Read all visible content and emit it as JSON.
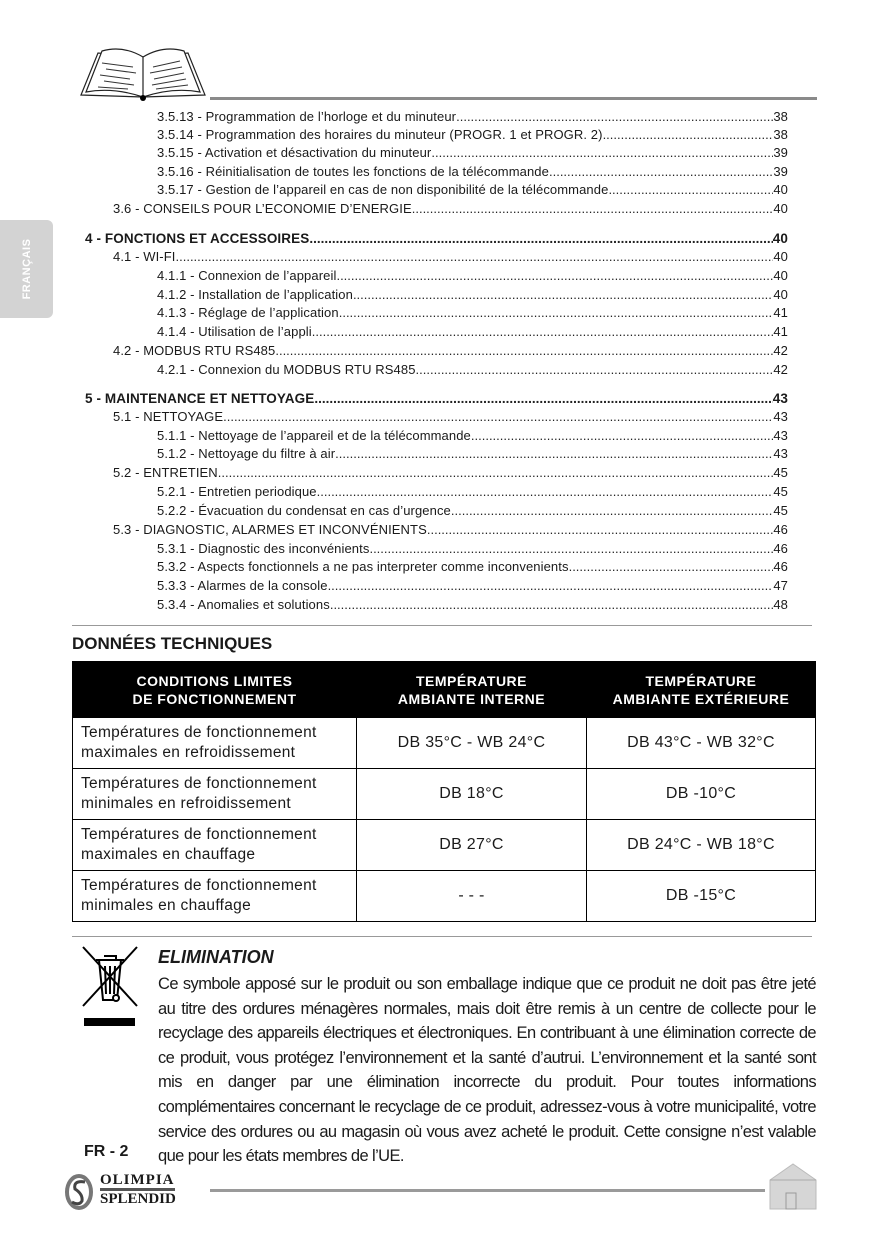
{
  "side_tab": "FRANÇAIS",
  "toc": [
    {
      "level": 3,
      "label": "3.5.13  - Programmation de l’horloge et du minuteur",
      "page": "38"
    },
    {
      "level": 3,
      "label": "3.5.14  - Programmation des horaires du minuteur (PROGR. 1 et PROGR. 2)",
      "page": "38"
    },
    {
      "level": 3,
      "label": "3.5.15  - Activation et désactivation du minuteur",
      "page": "39"
    },
    {
      "level": 3,
      "label": "3.5.16  - Réinitialisation de toutes les fonctions de la télécommande ",
      "page": "39"
    },
    {
      "level": 3,
      "label": "3.5.17  - Gestion de l’appareil en cas de non disponibilité de la télécommande",
      "page": "40"
    },
    {
      "level": 2,
      "label": "3.6 -  CONSEILS POUR L’ECONOMIE D’ENERGIE",
      "page": "40"
    },
    {
      "level": 1,
      "label": "4 -    FONCTIONS ET ACCESSOIRES ",
      "page": "40"
    },
    {
      "level": 2,
      "label": "4.1 -   WI-FI",
      "page": "40"
    },
    {
      "level": 3,
      "label": "4.1.1 - Connexion de l’appareil",
      "page": "40"
    },
    {
      "level": 3,
      "label": "4.1.2 - Installation de l’application",
      "page": "40"
    },
    {
      "level": 3,
      "label": "4.1.3 - Réglage de l’application ",
      "page": "41"
    },
    {
      "level": 3,
      "label": "4.1.4 - Utilisation de l’appli",
      "page": "41"
    },
    {
      "level": 2,
      "label": "4.2 -   MODBUS RTU RS485",
      "page": "42"
    },
    {
      "level": 3,
      "label": "4.2.1 - Connexion du MODBUS RTU RS485 ",
      "page": "42"
    },
    {
      "level": 1,
      "label": "5 - MAINTENANCE ET NETTOYAGE",
      "page": "43"
    },
    {
      "level": 2,
      "label": "5.1 -   NETTOYAGE ",
      "page": "43"
    },
    {
      "level": 3,
      "label": "5.1.1 - Nettoyage de l’appareil et de la télécommande ",
      "page": "43"
    },
    {
      "level": 3,
      "label": "5.1.2 - Nettoyage du filtre à air",
      "page": "43"
    },
    {
      "level": 2,
      "label": "5.2 -   ENTRETIEN",
      "page": "45"
    },
    {
      "level": 3,
      "label": "5.2.1 - Entretien periodique ",
      "page": "45"
    },
    {
      "level": 3,
      "label": "5.2.2 - Évacuation du condensat en cas d’urgence ",
      "page": "45"
    },
    {
      "level": 2,
      "label": "5.3 -  DIAGNOSTIC, ALARMES ET INCONVÉNIENTS ",
      "page": "46"
    },
    {
      "level": 3,
      "label": "5.3.1 - Diagnostic des inconvénients ",
      "page": "46"
    },
    {
      "level": 3,
      "label": "5.3.2 - Aspects fonctionnels a ne pas interpreter comme inconvenients",
      "page": "46"
    },
    {
      "level": 3,
      "label": "5.3.3 - Alarmes de la console ",
      "page": "47"
    },
    {
      "level": 3,
      "label": "5.3.4 - Anomalies et solutions",
      "page": "48"
    }
  ],
  "tech": {
    "title": "DONNÉES TECHNIQUES",
    "headers": [
      [
        "CONDITIONS LIMITES",
        "DE FONCTIONNEMENT"
      ],
      [
        "TEMPÉRATURE",
        "AMBIANTE INTERNE"
      ],
      [
        "TEMPÉRATURE",
        "AMBIANTE EXTÉRIEURE"
      ]
    ],
    "rows": [
      {
        "label": [
          "Températures de fonctionnement",
          "maximales en refroidissement"
        ],
        "internal": "DB 35°C - WB 24°C",
        "external": "DB 43°C - WB 32°C"
      },
      {
        "label": [
          "Températures de fonctionnement",
          "minimales en refroidissement"
        ],
        "internal": "DB 18°C",
        "external": "DB -10°C"
      },
      {
        "label": [
          "Températures de fonctionnement",
          "maximales en chauffage"
        ],
        "internal": "DB 27°C",
        "external": "DB 24°C - WB 18°C"
      },
      {
        "label": [
          "Températures de fonctionnement",
          "minimales en chauffage"
        ],
        "internal": "- - -",
        "external": "DB -15°C"
      }
    ]
  },
  "elimination": {
    "title": "ELIMINATION",
    "text": "Ce symbole apposé sur le produit ou son emballage indique que ce produit ne doit pas être jeté au titre des ordures ménagères normales, mais doit être remis à un centre de collecte pour le recyclage des appareils électriques et électroniques. En contribuant à une élimination correcte de ce produit, vous protégez l’environnement et la santé d’autrui. L’environnement et la santé sont mis en danger par une élimination incorrecte du produit. Pour toutes informations complémentaires concernant le recyclage de ce produit, adressez-vous à votre municipalité, votre service des ordures ou au magasin où vous avez acheté le produit. Cette consigne n’est valable que pour les états membres de l’UE."
  },
  "footer": {
    "page": "FR - 2",
    "logo_line1": "OLIMPIA",
    "logo_line2": "SPLENDID",
    "home_icon": "home-icon"
  }
}
